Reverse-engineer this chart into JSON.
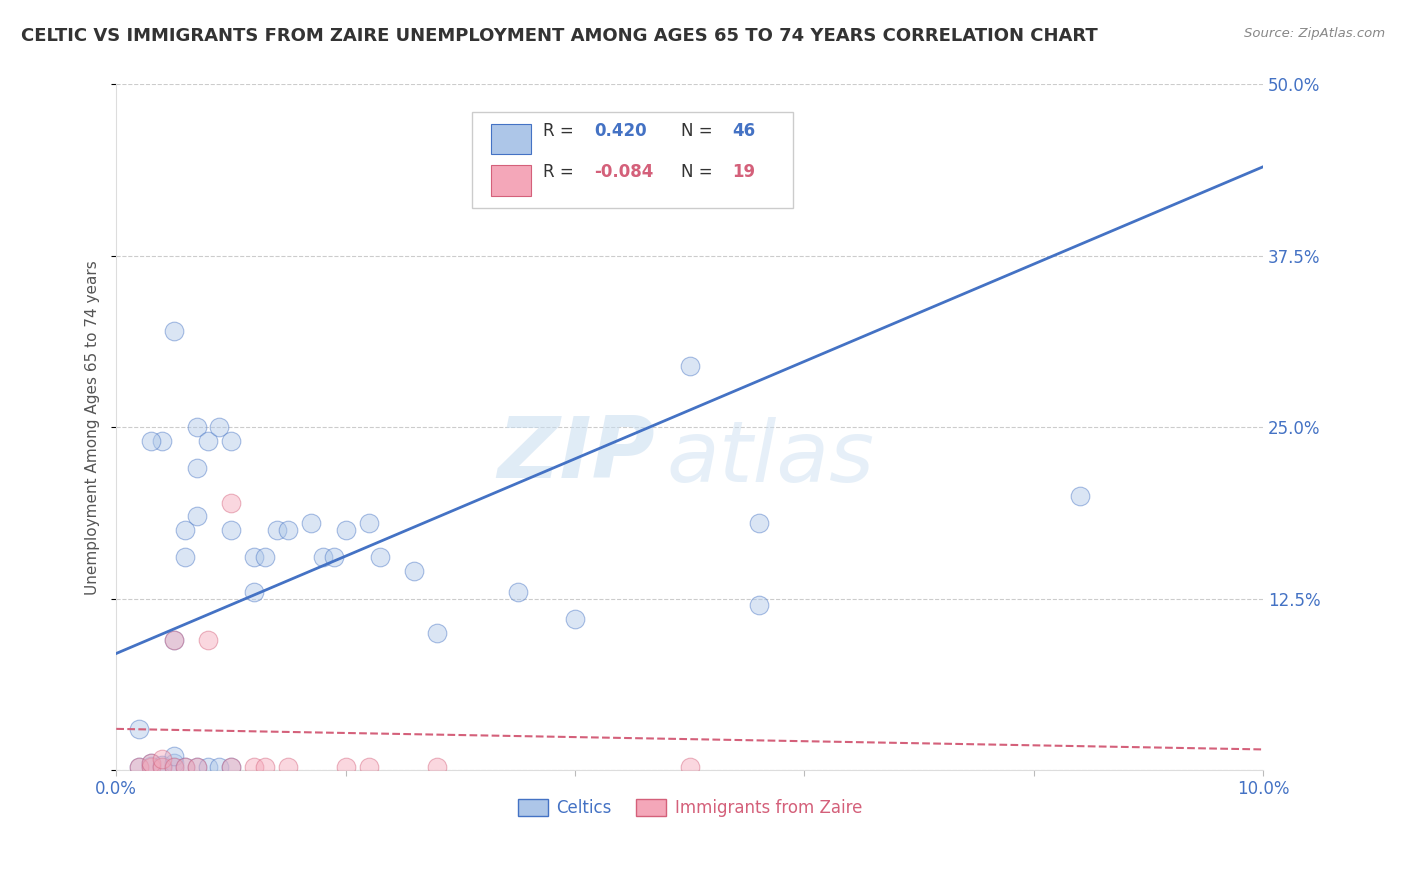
{
  "title": "CELTIC VS IMMIGRANTS FROM ZAIRE UNEMPLOYMENT AMONG AGES 65 TO 74 YEARS CORRELATION CHART",
  "source": "Source: ZipAtlas.com",
  "ylabel": "Unemployment Among Ages 65 to 74 years",
  "xlim": [
    0.0,
    0.1
  ],
  "ylim": [
    0.0,
    0.5
  ],
  "xticks": [
    0.0,
    0.02,
    0.04,
    0.06,
    0.08,
    0.1
  ],
  "xticklabels": [
    "0.0%",
    "",
    "",
    "",
    "",
    "10.0%"
  ],
  "yticks": [
    0.0,
    0.125,
    0.25,
    0.375,
    0.5
  ],
  "yticklabels": [
    "",
    "12.5%",
    "25.0%",
    "37.5%",
    "50.0%"
  ],
  "blue_color": "#adc6e8",
  "blue_line_color": "#4472c4",
  "pink_color": "#f4a7b9",
  "pink_line_color": "#d4607a",
  "blue_label": "Celtics",
  "pink_label": "Immigrants from Zaire",
  "watermark_zip": "ZIP",
  "watermark_atlas": "atlas",
  "blue_scatter_x": [
    0.002,
    0.003,
    0.003,
    0.004,
    0.004,
    0.004,
    0.005,
    0.005,
    0.005,
    0.005,
    0.006,
    0.006,
    0.006,
    0.007,
    0.007,
    0.007,
    0.007,
    0.008,
    0.008,
    0.009,
    0.009,
    0.01,
    0.01,
    0.01,
    0.012,
    0.012,
    0.013,
    0.014,
    0.015,
    0.017,
    0.018,
    0.019,
    0.02,
    0.022,
    0.023,
    0.026,
    0.028,
    0.035,
    0.04,
    0.05,
    0.056,
    0.056,
    0.084,
    0.002,
    0.003,
    0.005
  ],
  "blue_scatter_y": [
    0.002,
    0.003,
    0.005,
    0.002,
    0.004,
    0.24,
    0.002,
    0.005,
    0.01,
    0.32,
    0.002,
    0.155,
    0.175,
    0.002,
    0.185,
    0.22,
    0.25,
    0.002,
    0.24,
    0.002,
    0.25,
    0.002,
    0.175,
    0.24,
    0.13,
    0.155,
    0.155,
    0.175,
    0.175,
    0.18,
    0.155,
    0.155,
    0.175,
    0.18,
    0.155,
    0.145,
    0.1,
    0.13,
    0.11,
    0.295,
    0.18,
    0.12,
    0.2,
    0.03,
    0.24,
    0.095
  ],
  "pink_scatter_x": [
    0.002,
    0.003,
    0.003,
    0.004,
    0.004,
    0.005,
    0.005,
    0.006,
    0.007,
    0.008,
    0.01,
    0.01,
    0.012,
    0.013,
    0.015,
    0.02,
    0.022,
    0.028,
    0.05
  ],
  "pink_scatter_y": [
    0.002,
    0.002,
    0.005,
    0.002,
    0.008,
    0.002,
    0.095,
    0.002,
    0.002,
    0.095,
    0.002,
    0.195,
    0.002,
    0.002,
    0.002,
    0.002,
    0.002,
    0.002,
    0.002
  ],
  "blue_line_x0": 0.0,
  "blue_line_y0": 0.085,
  "blue_line_x1": 0.1,
  "blue_line_y1": 0.44,
  "pink_line_x0": 0.0,
  "pink_line_y0": 0.03,
  "pink_line_x1": 0.1,
  "pink_line_y1": 0.015,
  "marker_size": 180,
  "marker_alpha": 0.45,
  "title_fontsize": 13,
  "axis_label_fontsize": 11,
  "tick_fontsize": 12
}
